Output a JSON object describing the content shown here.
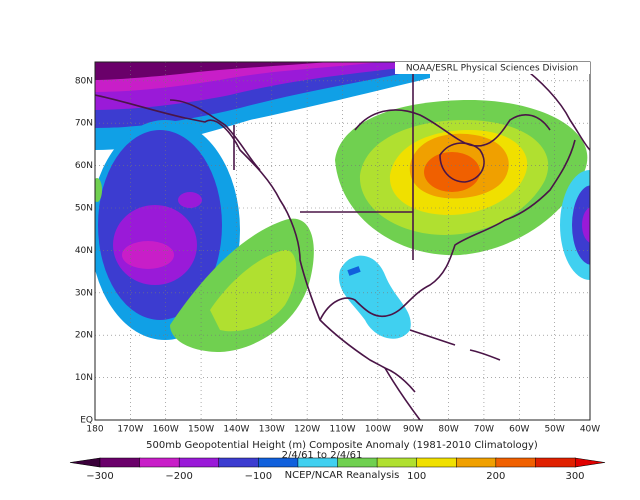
{
  "header": {
    "source": "NOAA/ESRL Physical Sciences Division"
  },
  "map": {
    "lat_labels": [
      "EQ",
      "10N",
      "20N",
      "30N",
      "40N",
      "50N",
      "60N",
      "70N",
      "80N"
    ],
    "lon_labels": [
      "180",
      "170W",
      "160W",
      "150W",
      "140W",
      "130W",
      "120W",
      "110W",
      "100W",
      "90W",
      "80W",
      "70W",
      "60W",
      "50W",
      "40W"
    ]
  },
  "caption": {
    "title": "500mb Geopotential Height (m) Composite Anomaly (1981-2010 Climatology)",
    "dates": "2/4/61  to  2/4/61",
    "credit": "NCEP/NCAR Reanalysis"
  },
  "colorbar": {
    "labels": [
      "−300",
      "−200",
      "−100",
      "100",
      "200",
      "300"
    ]
  }
}
